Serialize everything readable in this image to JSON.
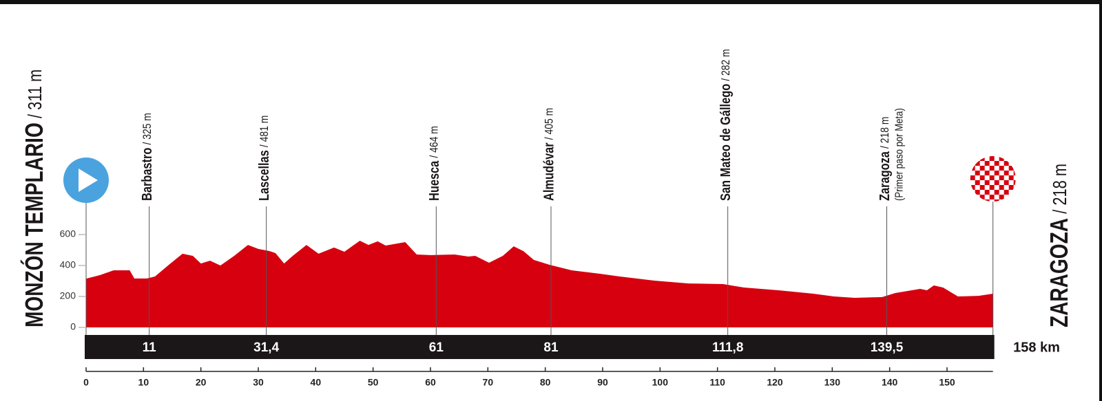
{
  "chart_data": {
    "type": "area",
    "color": "#d7000f",
    "start": {
      "name": "MONZÓN TEMPLARIO",
      "altitude": "/ 311 m"
    },
    "finish": {
      "name": "ZARAGOZA",
      "altitude": "/ 218 m"
    },
    "distance_label": "158 km",
    "x": [
      0,
      2.4,
      4.8,
      6.6,
      7.6,
      8.4,
      10.6,
      12,
      14.4,
      16.8,
      18.6,
      20,
      21.6,
      23.4,
      25.8,
      28.2,
      30,
      32,
      33,
      34.5,
      36,
      38.4,
      40.5,
      43.2,
      45,
      47.7,
      49.2,
      50.8,
      52.2,
      55.6,
      57.6,
      60,
      64.2,
      66.6,
      67.8,
      70.2,
      72.6,
      74.5,
      76.2,
      78,
      80.8,
      84.6,
      89.4,
      93,
      99,
      105,
      111,
      114.6,
      120.6,
      126.7,
      130.3,
      133.9,
      138.7,
      141,
      145.3,
      146.5,
      147.7,
      149.3,
      151.9,
      155.5,
      158
    ],
    "values": [
      315,
      338,
      369,
      369,
      369,
      316,
      316,
      329,
      404,
      476,
      462,
      413,
      431,
      400,
      462,
      533,
      507,
      493,
      480,
      413,
      462,
      533,
      476,
      516,
      489,
      560,
      533,
      556,
      529,
      551,
      471,
      467,
      471,
      458,
      462,
      418,
      462,
      524,
      493,
      436,
      404,
      369,
      347,
      329,
      302,
      284,
      280,
      258,
      240,
      218,
      200,
      191,
      196,
      222,
      249,
      240,
      271,
      258,
      200,
      204,
      218
    ],
    "xlim": [
      0,
      158
    ],
    "ylim": [
      0,
      600
    ],
    "xticks": [
      0,
      10,
      20,
      30,
      40,
      50,
      60,
      70,
      80,
      90,
      100,
      110,
      120,
      130,
      140,
      150
    ],
    "yticks": [
      0,
      200,
      400,
      600
    ],
    "waypoints": [
      {
        "name": "Barbastro",
        "altitude": "/ 325 m",
        "km": 11
      },
      {
        "name": "Lascellas",
        "altitude": "/ 481 m",
        "km": {
          "value": 31.4,
          "label": "31,4"
        }
      },
      {
        "name": "Huesca",
        "altitude": "/ 464 m",
        "km": 61
      },
      {
        "name": "Almudévar",
        "altitude": "/ 405 m",
        "km": 81
      },
      {
        "name": "San Mateo de Gállego",
        "altitude": "/ 282 m",
        "km": {
          "value": 111.8,
          "label": "111,8"
        }
      },
      {
        "name": "Zaragoza",
        "altitude": "/ 218 m",
        "note": "(Primer paso por Meta)",
        "km": {
          "value": 139.5,
          "label": "139,5"
        }
      }
    ]
  }
}
